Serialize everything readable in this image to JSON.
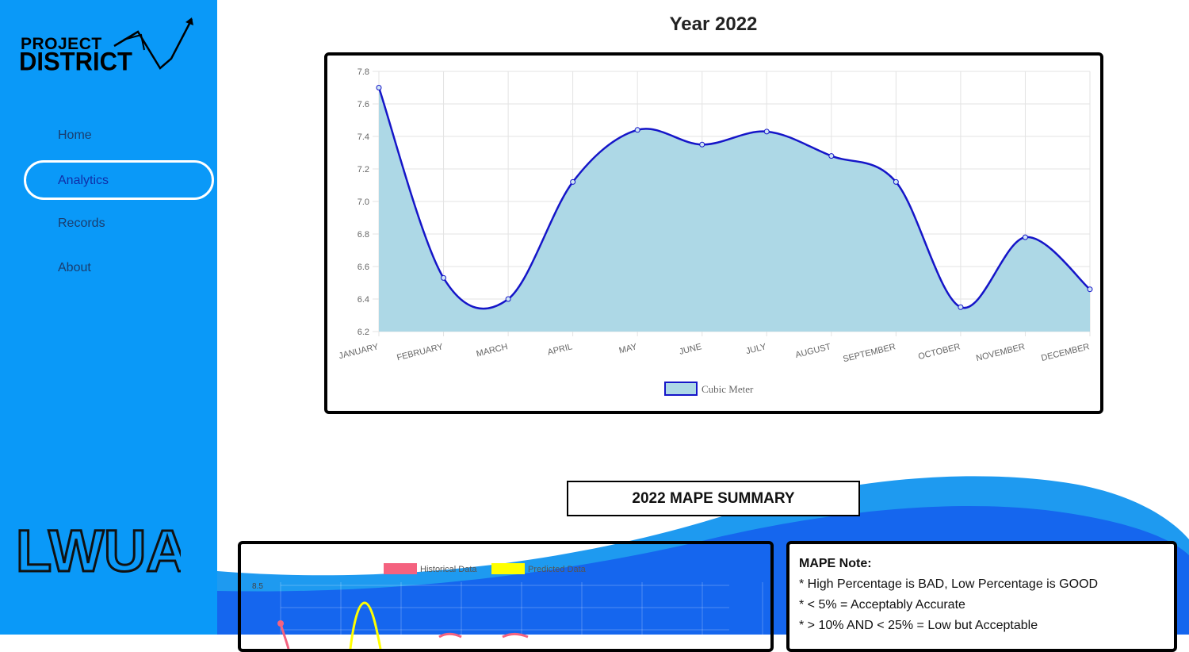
{
  "sidebar": {
    "logo": {
      "line1": "PROJECT",
      "line2": "DISTRICT"
    },
    "items": [
      {
        "label": "Home",
        "active": false
      },
      {
        "label": "Analytics",
        "active": true
      },
      {
        "label": "Records",
        "active": false
      },
      {
        "label": "About",
        "active": false
      }
    ],
    "footer_logo": "LWUA"
  },
  "main": {
    "title": "Year 2022",
    "mape_title": "2022 MAPE SUMMARY",
    "mape_note": {
      "heading": "MAPE Note:",
      "lines": [
        "* High Percentage is BAD, Low Percentage is GOOD",
        "* < 5% = Acceptably Accurate",
        "* > 10% AND < 25% = Low but Acceptable"
      ]
    }
  },
  "colors": {
    "sidebar": "#0a99f8",
    "line": "#1515c8",
    "fill": "#add8e6",
    "historical": "#f4627f",
    "predicted": "#ffff00",
    "wave_light": "#1e9af0",
    "wave_dark": "#1566ee"
  },
  "chart_data": [
    {
      "type": "area",
      "title": "",
      "categories": [
        "JANUARY",
        "FEBRUARY",
        "MARCH",
        "APRIL",
        "MAY",
        "JUNE",
        "JULY",
        "AUGUST",
        "SEPTEMBER",
        "OCTOBER",
        "NOVEMBER",
        "DECEMBER"
      ],
      "series": [
        {
          "name": "Cubic Meter",
          "values": [
            7.7,
            6.53,
            6.4,
            7.12,
            7.44,
            7.35,
            7.43,
            7.28,
            7.12,
            6.35,
            6.78,
            6.46
          ]
        }
      ],
      "ylim": [
        6.2,
        7.8
      ],
      "yticks": [
        "7.8",
        "7.6",
        "7.4",
        "7.2",
        "7.0",
        "6.8",
        "6.6",
        "6.4",
        "6.2"
      ],
      "grid": true,
      "legend": "bottom"
    },
    {
      "type": "line",
      "legend_labels": [
        "Historical Data",
        "Predicted Data"
      ],
      "yticks": [
        "8.5"
      ],
      "legend": "top"
    }
  ]
}
